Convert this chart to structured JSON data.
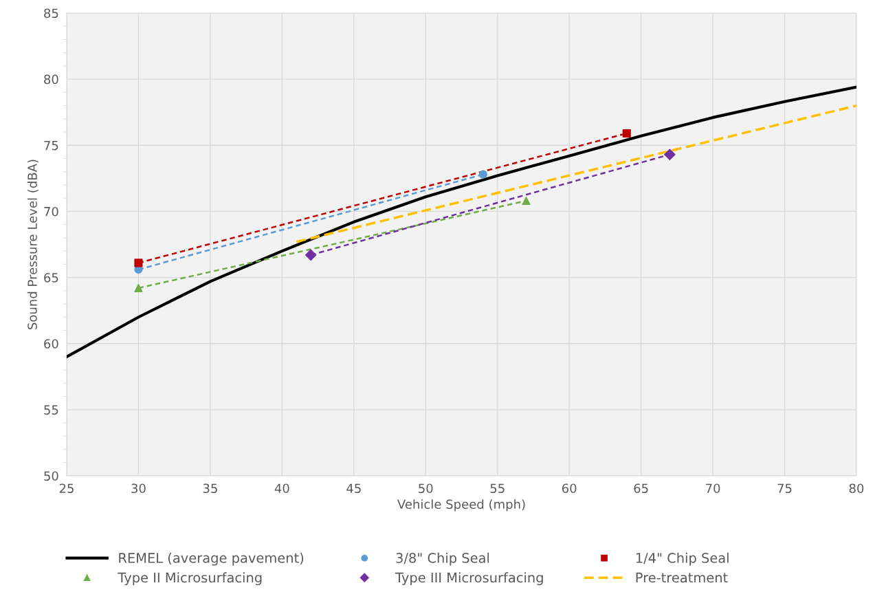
{
  "chart_data": {
    "type": "line",
    "xlabel": "Vehicle Speed (mph)",
    "ylabel": "Sound Pressure Level (dBA)",
    "xlim": [
      25,
      80
    ],
    "xticks": [
      25,
      30,
      35,
      40,
      45,
      50,
      55,
      60,
      65,
      70,
      75,
      80
    ],
    "ylim": [
      50,
      85
    ],
    "yticks": [
      50,
      55,
      60,
      65,
      70,
      75,
      80,
      85
    ],
    "grid": true,
    "legend": "bottom",
    "series": [
      {
        "name": "REMEL (average pavement)",
        "color": "#000000",
        "line_style": "solid",
        "marker": "none",
        "x": [
          25,
          30,
          35,
          40,
          45,
          50,
          55,
          60,
          65,
          70,
          75,
          80
        ],
        "values": [
          59.0,
          62.0,
          64.7,
          67.0,
          69.2,
          71.1,
          72.7,
          74.2,
          75.7,
          77.1,
          78.3,
          79.4
        ]
      },
      {
        "name": "3/8\" Chip Seal",
        "type": "scatter",
        "color": "#5b9bd5",
        "marker": "circle",
        "x": [
          30,
          54
        ],
        "values": [
          65.6,
          72.8
        ]
      },
      {
        "name": "1/4\" Chip Seal",
        "type": "scatter",
        "color": "#c00000",
        "marker": "square",
        "x": [
          30,
          64
        ],
        "values": [
          66.1,
          75.9
        ]
      },
      {
        "name": "Type II Microsurfacing",
        "type": "scatter",
        "color": "#70ad47",
        "marker": "triangle",
        "x": [
          30,
          57
        ],
        "values": [
          64.2,
          70.8
        ]
      },
      {
        "name": "Type III Microsurfacing",
        "type": "scatter",
        "color": "#7030a0",
        "marker": "diamond",
        "x": [
          42,
          67
        ],
        "values": [
          66.7,
          74.3
        ]
      },
      {
        "name": "Pre-treatment",
        "color": "#ffc000",
        "line_style": "dashed",
        "marker": "none",
        "x": [
          41,
          80
        ],
        "values": [
          67.7,
          78.0
        ]
      },
      {
        "type": "line",
        "color": "#5b9bd5",
        "line_style": "dotted",
        "marker": "none",
        "x": [
          30,
          54
        ],
        "values": [
          65.6,
          72.8
        ]
      },
      {
        "type": "line",
        "color": "#c00000",
        "line_style": "dotted",
        "marker": "none",
        "x": [
          30,
          64
        ],
        "values": [
          66.1,
          75.9
        ]
      },
      {
        "type": "line",
        "color": "#70ad47",
        "line_style": "dotted",
        "marker": "none",
        "x": [
          30,
          57
        ],
        "values": [
          64.2,
          70.8
        ]
      },
      {
        "type": "line",
        "color": "#7030a0",
        "line_style": "dotted",
        "marker": "none",
        "x": [
          42,
          67
        ],
        "values": [
          66.7,
          74.3
        ]
      }
    ]
  }
}
